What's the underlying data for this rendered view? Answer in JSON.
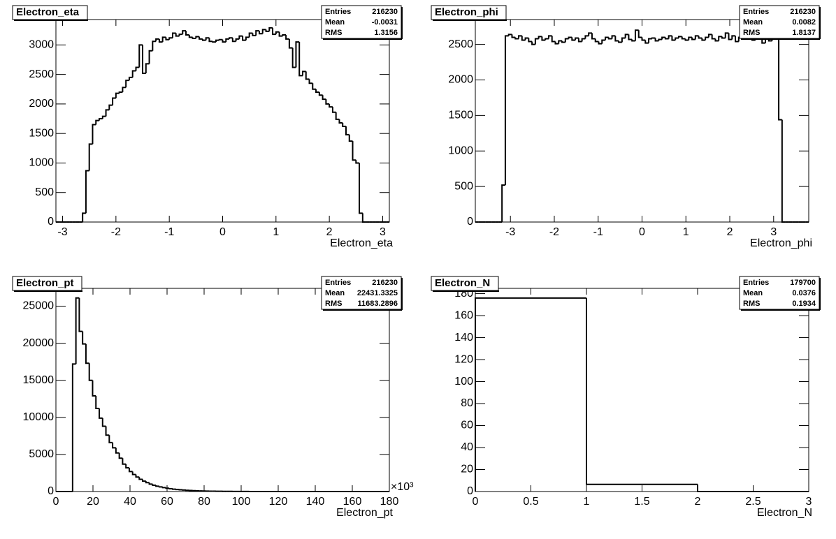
{
  "chart_data": [
    {
      "type": "histogram",
      "title": "Electron_eta",
      "x_label": "Electron_eta",
      "color": "#000000",
      "bins": [
        -3.125,
        -3.0625,
        -3,
        -2.9375,
        -2.875,
        -2.8125,
        -2.75,
        -2.6875,
        -2.625,
        -2.5625,
        -2.5,
        -2.4375,
        -2.375,
        -2.3125,
        -2.25,
        -2.1875,
        -2.125,
        -2.0625,
        -2,
        -1.9375,
        -1.875,
        -1.8125,
        -1.75,
        -1.6875,
        -1.625,
        -1.5625,
        -1.5,
        -1.4375,
        -1.375,
        -1.3125,
        -1.25,
        -1.1875,
        -1.125,
        -1.0625,
        -1,
        -0.9375,
        -0.875,
        -0.8125,
        -0.75,
        -0.6875,
        -0.625,
        -0.5625,
        -0.5,
        -0.4375,
        -0.375,
        -0.3125,
        -0.25,
        -0.1875,
        -0.125,
        -0.0625,
        0,
        0.0625,
        0.125,
        0.1875,
        0.25,
        0.3125,
        0.375,
        0.4375,
        0.5,
        0.5625,
        0.625,
        0.6875,
        0.75,
        0.8125,
        0.875,
        0.9375,
        1,
        1.0625,
        1.125,
        1.1875,
        1.25,
        1.3125,
        1.375,
        1.4375,
        1.5,
        1.5625,
        1.625,
        1.6875,
        1.75,
        1.8125,
        1.875,
        1.9375,
        2,
        2.0625,
        2.125,
        2.1875,
        2.25,
        2.3125,
        2.375,
        2.4375,
        2.5,
        2.5625,
        2.625,
        2.6875,
        2.75,
        2.8125,
        2.875,
        2.9375,
        3,
        3.0625,
        3.125
      ],
      "values": [
        0,
        0,
        0,
        0,
        0,
        0,
        0,
        0,
        150,
        870,
        1320,
        1650,
        1720,
        1750,
        1790,
        1900,
        1980,
        2100,
        2180,
        2200,
        2280,
        2400,
        2450,
        2560,
        2620,
        3000,
        2520,
        2680,
        2900,
        3060,
        3100,
        3050,
        3130,
        3090,
        3120,
        3200,
        3150,
        3180,
        3240,
        3170,
        3130,
        3110,
        3140,
        3100,
        3080,
        3120,
        3060,
        3050,
        3080,
        3090,
        3050,
        3100,
        3120,
        3060,
        3100,
        3150,
        3080,
        3130,
        3200,
        3160,
        3240,
        3190,
        3260,
        3230,
        3290,
        3180,
        3220,
        3150,
        3170,
        3100,
        2950,
        2620,
        3050,
        2480,
        2550,
        2420,
        2350,
        2250,
        2200,
        2150,
        2080,
        2000,
        1950,
        1860,
        1740,
        1680,
        1620,
        1480,
        1370,
        1050,
        1000,
        150,
        0,
        0,
        0,
        0,
        0,
        0,
        0,
        0
      ],
      "xlim": [
        -3.125,
        3.125
      ],
      "xticks": [
        -3,
        -2,
        -1,
        0,
        1,
        2,
        3
      ],
      "ylim": [
        0,
        3430
      ],
      "yticks": [
        0,
        500,
        1000,
        1500,
        2000,
        2500,
        3000
      ],
      "stats": [
        {
          "name": "Entries",
          "value": 216230
        },
        {
          "name": "Mean",
          "value": -0.0031
        },
        {
          "name": "RMS",
          "value": 1.3156
        }
      ]
    },
    {
      "type": "histogram",
      "title": "Electron_phi",
      "x_label": "Electron_phi",
      "color": "#000000",
      "bins": [
        -3.8,
        -3.724,
        -3.648,
        -3.572,
        -3.496,
        -3.42,
        -3.344,
        -3.268,
        -3.192,
        -3.116,
        -3.04,
        -2.964,
        -2.888,
        -2.812,
        -2.736,
        -2.66,
        -2.584,
        -2.508,
        -2.432,
        -2.356,
        -2.28,
        -2.204,
        -2.128,
        -2.052,
        -1.976,
        -1.9,
        -1.824,
        -1.748,
        -1.672,
        -1.596,
        -1.52,
        -1.444,
        -1.368,
        -1.292,
        -1.216,
        -1.14,
        -1.064,
        -0.988,
        -0.912,
        -0.836,
        -0.76,
        -0.684,
        -0.608,
        -0.532,
        -0.456,
        -0.38,
        -0.304,
        -0.228,
        -0.152,
        -0.076,
        0,
        0.076,
        0.152,
        0.228,
        0.304,
        0.38,
        0.456,
        0.532,
        0.608,
        0.684,
        0.76,
        0.836,
        0.912,
        0.988,
        1.064,
        1.14,
        1.216,
        1.292,
        1.368,
        1.444,
        1.52,
        1.596,
        1.672,
        1.748,
        1.824,
        1.9,
        1.976,
        2.052,
        2.128,
        2.204,
        2.28,
        2.356,
        2.432,
        2.508,
        2.584,
        2.66,
        2.736,
        2.812,
        2.888,
        2.964,
        3.04,
        3.116,
        3.192,
        3.268,
        3.344,
        3.42,
        3.496,
        3.572,
        3.648,
        3.724,
        3.8
      ],
      "values": [
        0,
        0,
        0,
        0,
        0,
        0,
        0,
        0,
        520,
        2620,
        2640,
        2600,
        2580,
        2620,
        2560,
        2590,
        2540,
        2500,
        2580,
        2610,
        2560,
        2580,
        2620,
        2540,
        2510,
        2550,
        2530,
        2580,
        2600,
        2560,
        2590,
        2540,
        2580,
        2620,
        2660,
        2580,
        2540,
        2510,
        2560,
        2600,
        2580,
        2620,
        2550,
        2530,
        2590,
        2640,
        2570,
        2550,
        2700,
        2600,
        2560,
        2520,
        2580,
        2590,
        2550,
        2570,
        2600,
        2580,
        2620,
        2560,
        2590,
        2610,
        2580,
        2560,
        2600,
        2570,
        2620,
        2590,
        2560,
        2600,
        2640,
        2580,
        2550,
        2610,
        2590,
        2660,
        2570,
        2620,
        2540,
        2600,
        2580,
        2650,
        2620,
        2560,
        2700,
        2600,
        2520,
        2580,
        2550,
        2600,
        2660,
        1440,
        0,
        0,
        0,
        0,
        0,
        0,
        0,
        0
      ],
      "xlim": [
        -3.8,
        3.8
      ],
      "xticks": [
        -3,
        -2,
        -1,
        0,
        1,
        2,
        3
      ],
      "ylim": [
        0,
        2850
      ],
      "yticks": [
        0,
        500,
        1000,
        1500,
        2000,
        2500
      ],
      "stats": [
        {
          "name": "Entries",
          "value": 216230
        },
        {
          "name": "Mean",
          "value": 0.0082
        },
        {
          "name": "RMS",
          "value": 1.8137
        }
      ]
    },
    {
      "type": "histogram",
      "title": "Electron_pt",
      "x_label": "Electron_pt",
      "x_multiplier": "×10³",
      "color": "#000000",
      "bins": [
        0,
        1.8,
        3.6,
        5.4,
        7.2,
        9,
        10.8,
        12.6,
        14.4,
        16.2,
        18,
        19.8,
        21.6,
        23.4,
        25.2,
        27,
        28.8,
        30.6,
        32.4,
        34.2,
        36,
        37.8,
        39.6,
        41.4,
        43.2,
        45,
        46.8,
        48.6,
        50.4,
        52.2,
        54,
        55.8,
        57.6,
        59.4,
        61.2,
        63,
        64.8,
        66.6,
        68.4,
        70.2,
        72,
        73.8,
        75.6,
        77.4,
        79.2,
        81,
        82.8,
        84.6,
        86.4,
        88.2,
        90,
        91.8,
        93.6,
        95.4,
        97.2,
        99,
        100.8,
        102.6,
        104.4,
        106.2,
        108,
        109.8,
        111.6,
        113.4,
        115.2,
        117,
        118.8,
        120.6,
        122.4,
        124.2,
        126,
        127.8,
        129.6,
        131.4,
        133.2,
        135,
        136.8,
        138.6,
        140.4,
        142.2,
        144,
        145.8,
        147.6,
        149.4,
        151.2,
        153,
        154.8,
        156.6,
        158.4,
        160.2,
        162,
        163.8,
        165.6,
        167.4,
        169.2,
        171,
        172.8,
        174.6,
        176.4,
        178.2,
        180
      ],
      "values": [
        0,
        0,
        0,
        0,
        0,
        17200,
        26100,
        21600,
        19900,
        17300,
        15000,
        12900,
        11200,
        9900,
        8800,
        7600,
        6600,
        5900,
        5200,
        4500,
        3700,
        3200,
        2700,
        2300,
        1950,
        1650,
        1400,
        1200,
        1000,
        850,
        720,
        620,
        530,
        450,
        380,
        320,
        270,
        230,
        195,
        165,
        140,
        120,
        100,
        85,
        72,
        60,
        50,
        42,
        35,
        30,
        25,
        21,
        18,
        15,
        12,
        10,
        8,
        7,
        5,
        4,
        3,
        0,
        0,
        0,
        0,
        0,
        0,
        0,
        0,
        0,
        0,
        0,
        0,
        0,
        0,
        0,
        0,
        0,
        0,
        0,
        0,
        0,
        0,
        0,
        0,
        0,
        0,
        0,
        0,
        0,
        0,
        0,
        0,
        0,
        0,
        0,
        0,
        0,
        0,
        0
      ],
      "xlim": [
        0,
        180
      ],
      "xticks": [
        0,
        20,
        40,
        60,
        80,
        100,
        120,
        140,
        160,
        180
      ],
      "ylim": [
        0,
        27400
      ],
      "yticks": [
        0,
        5000,
        10000,
        15000,
        20000,
        25000
      ],
      "stats": [
        {
          "name": "Entries",
          "value": 216230
        },
        {
          "name": "Mean",
          "value": 22431.3325
        },
        {
          "name": "RMS",
          "value": 11683.2896
        }
      ]
    },
    {
      "type": "histogram",
      "title": "Electron_N",
      "x_label": "Electron_N",
      "color": "#000000",
      "bins": [
        0,
        1,
        2,
        3
      ],
      "values": [
        176,
        6.5,
        0
      ],
      "xlim": [
        0,
        3
      ],
      "xticks": [
        0,
        0.5,
        1,
        1.5,
        2,
        2.5,
        3
      ],
      "ylim": [
        0,
        184.8
      ],
      "yticks": [
        0,
        20,
        40,
        60,
        80,
        100,
        120,
        140,
        160,
        180
      ],
      "stats": [
        {
          "name": "Entries",
          "value": 179700
        },
        {
          "name": "Mean",
          "value": 0.0376
        },
        {
          "name": "RMS",
          "value": 0.1934
        }
      ]
    }
  ]
}
